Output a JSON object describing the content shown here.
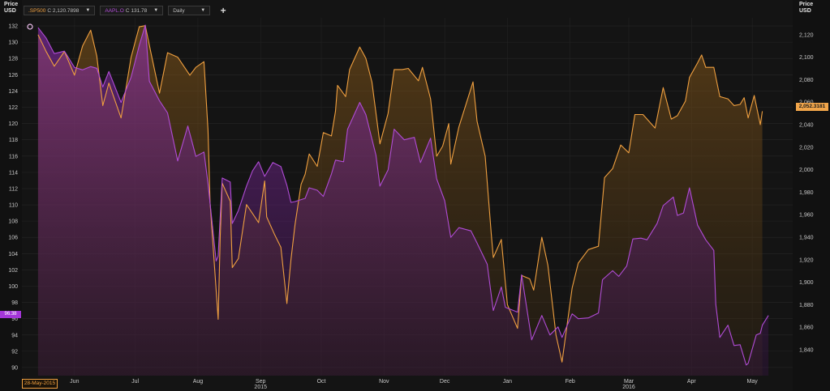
{
  "toolbar": {
    "symbol1": {
      "name": ".SP500",
      "close_label": "C",
      "close_value": "2,120.7898",
      "color": "#f0a040"
    },
    "symbol2": {
      "name": "AAPL.O",
      "close_label": "C",
      "close_value": "131.78",
      "color": "#b04cd6"
    },
    "interval": "Daily",
    "add_label": "+"
  },
  "left_badge": "96.38",
  "right_badge": "2,052.3181",
  "date_badge": "28-May-2015",
  "chart_data": {
    "type": "area",
    "title": "",
    "left_axis": {
      "label_line1": "Price",
      "label_line2": "USD",
      "ylim": [
        89,
        133
      ],
      "ticks": [
        "90",
        "92",
        "94",
        "96",
        "98",
        "100",
        "102",
        "104",
        "106",
        "108",
        "110",
        "112",
        "114",
        "116",
        "118",
        "120",
        "122",
        "124",
        "126",
        "128",
        "130",
        "132"
      ]
    },
    "right_axis": {
      "label_line1": "Price",
      "label_line2": "USD",
      "ylim": [
        1817,
        2135
      ],
      "ticks": [
        "1,840",
        "1,860",
        "1,880",
        "1,900",
        "1,920",
        "1,940",
        "1,960",
        "1,980",
        "2,000",
        "2,020",
        "2,040",
        "2,060",
        "2,080",
        "2,100",
        "2,120"
      ]
    },
    "x_months": [
      "Jun",
      "Jul",
      "Aug",
      "Sep",
      "Oct",
      "Nov",
      "Dec",
      "Jan",
      "Feb",
      "Mar",
      "Apr",
      "May"
    ],
    "x_years": [
      "2015",
      "2016"
    ],
    "grid": true,
    "series": [
      {
        "name": ".SP500",
        "axis": "right",
        "color": "#f0a040",
        "points": [
          [
            "2015-05-28",
            2120
          ],
          [
            "2015-06-01",
            2105
          ],
          [
            "2015-06-05",
            2092
          ],
          [
            "2015-06-10",
            2105
          ],
          [
            "2015-06-15",
            2084
          ],
          [
            "2015-06-19",
            2110
          ],
          [
            "2015-06-23",
            2124
          ],
          [
            "2015-06-26",
            2101
          ],
          [
            "2015-06-29",
            2057
          ],
          [
            "2015-07-02",
            2077
          ],
          [
            "2015-07-08",
            2046
          ],
          [
            "2015-07-13",
            2100
          ],
          [
            "2015-07-17",
            2127
          ],
          [
            "2015-07-20",
            2128
          ],
          [
            "2015-07-23",
            2102
          ],
          [
            "2015-07-27",
            2068
          ],
          [
            "2015-07-31",
            2104
          ],
          [
            "2015-08-05",
            2100
          ],
          [
            "2015-08-11",
            2084
          ],
          [
            "2015-08-14",
            2091
          ],
          [
            "2015-08-18",
            2096
          ],
          [
            "2015-08-20",
            2035
          ],
          [
            "2015-08-21",
            1971
          ],
          [
            "2015-08-24",
            1893
          ],
          [
            "2015-08-25",
            1867
          ],
          [
            "2015-08-26",
            1940
          ],
          [
            "2015-08-27",
            1988
          ],
          [
            "2015-08-31",
            1972
          ],
          [
            "2015-09-01",
            1913
          ],
          [
            "2015-09-04",
            1921
          ],
          [
            "2015-09-08",
            1969
          ],
          [
            "2015-09-11",
            1961
          ],
          [
            "2015-09-14",
            1953
          ],
          [
            "2015-09-17",
            1990
          ],
          [
            "2015-09-18",
            1958
          ],
          [
            "2015-09-22",
            1942
          ],
          [
            "2015-09-25",
            1931
          ],
          [
            "2015-09-28",
            1881
          ],
          [
            "2015-09-30",
            1920
          ],
          [
            "2015-10-02",
            1951
          ],
          [
            "2015-10-05",
            1987
          ],
          [
            "2015-10-07",
            1996
          ],
          [
            "2015-10-09",
            2014
          ],
          [
            "2015-10-13",
            2003
          ],
          [
            "2015-10-16",
            2033
          ],
          [
            "2015-10-20",
            2030
          ],
          [
            "2015-10-22",
            2052
          ],
          [
            "2015-10-23",
            2075
          ],
          [
            "2015-10-27",
            2065
          ],
          [
            "2015-10-29",
            2089
          ],
          [
            "2015-11-03",
            2109
          ],
          [
            "2015-11-06",
            2099
          ],
          [
            "2015-11-09",
            2078
          ],
          [
            "2015-11-13",
            2023
          ],
          [
            "2015-11-17",
            2050
          ],
          [
            "2015-11-20",
            2089
          ],
          [
            "2015-11-24",
            2089
          ],
          [
            "2015-11-27",
            2090
          ],
          [
            "2015-12-02",
            2079
          ],
          [
            "2015-12-04",
            2091
          ],
          [
            "2015-12-08",
            2063
          ],
          [
            "2015-12-11",
            2012
          ],
          [
            "2015-12-14",
            2021
          ],
          [
            "2015-12-17",
            2041
          ],
          [
            "2015-12-18",
            2005
          ],
          [
            "2015-12-22",
            2038
          ],
          [
            "2015-12-29",
            2078
          ],
          [
            "2015-12-31",
            2043
          ],
          [
            "2016-01-04",
            2012
          ],
          [
            "2016-01-07",
            1943
          ],
          [
            "2016-01-08",
            1922
          ],
          [
            "2016-01-12",
            1938
          ],
          [
            "2016-01-15",
            1880
          ],
          [
            "2016-01-20",
            1859
          ],
          [
            "2016-01-22",
            1906
          ],
          [
            "2016-01-26",
            1903
          ],
          [
            "2016-01-28",
            1893
          ],
          [
            "2016-02-01",
            1940
          ],
          [
            "2016-02-04",
            1915
          ],
          [
            "2016-02-08",
            1853
          ],
          [
            "2016-02-11",
            1829
          ],
          [
            "2016-02-16",
            1895
          ],
          [
            "2016-02-19",
            1917
          ],
          [
            "2016-02-24",
            1929
          ],
          [
            "2016-02-29",
            1932
          ],
          [
            "2016-03-03",
            1993
          ],
          [
            "2016-03-07",
            2001
          ],
          [
            "2016-03-11",
            2022
          ],
          [
            "2016-03-15",
            2015
          ],
          [
            "2016-03-18",
            2049
          ],
          [
            "2016-03-22",
            2049
          ],
          [
            "2016-03-28",
            2037
          ],
          [
            "2016-04-01",
            2073
          ],
          [
            "2016-04-05",
            2045
          ],
          [
            "2016-04-08",
            2048
          ],
          [
            "2016-04-12",
            2061
          ],
          [
            "2016-04-14",
            2082
          ],
          [
            "2016-04-18",
            2095
          ],
          [
            "2016-04-20",
            2102
          ],
          [
            "2016-04-22",
            2091
          ],
          [
            "2016-04-26",
            2091
          ],
          [
            "2016-04-29",
            2065
          ],
          [
            "2016-05-03",
            2063
          ],
          [
            "2016-05-06",
            2057
          ],
          [
            "2016-05-09",
            2058
          ],
          [
            "2016-05-11",
            2064
          ],
          [
            "2016-05-13",
            2046
          ],
          [
            "2016-05-16",
            2066
          ],
          [
            "2016-05-19",
            2040
          ],
          [
            "2016-05-20",
            2052
          ]
        ]
      },
      {
        "name": "AAPL.O",
        "axis": "left",
        "color": "#b04cd6",
        "points": [
          [
            "2015-05-28",
            131.8
          ],
          [
            "2015-06-01",
            130.5
          ],
          [
            "2015-06-05",
            128.6
          ],
          [
            "2015-06-10",
            128.9
          ],
          [
            "2015-06-15",
            126.9
          ],
          [
            "2015-06-19",
            126.6
          ],
          [
            "2015-06-23",
            127.0
          ],
          [
            "2015-06-26",
            126.8
          ],
          [
            "2015-06-29",
            124.5
          ],
          [
            "2015-07-02",
            126.4
          ],
          [
            "2015-07-08",
            122.6
          ],
          [
            "2015-07-13",
            125.7
          ],
          [
            "2015-07-17",
            129.6
          ],
          [
            "2015-07-20",
            132.1
          ],
          [
            "2015-07-22",
            125.2
          ],
          [
            "2015-07-27",
            122.8
          ],
          [
            "2015-07-31",
            121.3
          ],
          [
            "2015-08-05",
            115.4
          ],
          [
            "2015-08-10",
            119.7
          ],
          [
            "2015-08-14",
            115.96
          ],
          [
            "2015-08-18",
            116.5
          ],
          [
            "2015-08-20",
            112.6
          ],
          [
            "2015-08-24",
            103.1
          ],
          [
            "2015-08-25",
            103.7
          ],
          [
            "2015-08-27",
            113.3
          ],
          [
            "2015-08-31",
            112.8
          ],
          [
            "2015-09-01",
            107.7
          ],
          [
            "2015-09-04",
            109.3
          ],
          [
            "2015-09-08",
            112.3
          ],
          [
            "2015-09-11",
            114.2
          ],
          [
            "2015-09-14",
            115.3
          ],
          [
            "2015-09-17",
            113.5
          ],
          [
            "2015-09-21",
            115.2
          ],
          [
            "2015-09-25",
            114.7
          ],
          [
            "2015-09-28",
            112.4
          ],
          [
            "2015-09-30",
            110.3
          ],
          [
            "2015-10-02",
            110.4
          ],
          [
            "2015-10-07",
            110.8
          ],
          [
            "2015-10-09",
            112.1
          ],
          [
            "2015-10-13",
            111.8
          ],
          [
            "2015-10-16",
            111.04
          ],
          [
            "2015-10-20",
            113.8
          ],
          [
            "2015-10-22",
            115.5
          ],
          [
            "2015-10-26",
            115.3
          ],
          [
            "2015-10-28",
            119.3
          ],
          [
            "2015-11-03",
            122.6
          ],
          [
            "2015-11-06",
            121.1
          ],
          [
            "2015-11-11",
            116.1
          ],
          [
            "2015-11-13",
            112.3
          ],
          [
            "2015-11-17",
            114.3
          ],
          [
            "2015-11-20",
            119.3
          ],
          [
            "2015-11-25",
            118.0
          ],
          [
            "2015-11-30",
            118.3
          ],
          [
            "2015-12-03",
            115.2
          ],
          [
            "2015-12-08",
            118.2
          ],
          [
            "2015-12-11",
            113.2
          ],
          [
            "2015-12-15",
            110.5
          ],
          [
            "2015-12-18",
            106.0
          ],
          [
            "2015-12-22",
            107.2
          ],
          [
            "2015-12-28",
            106.8
          ],
          [
            "2015-12-31",
            105.3
          ],
          [
            "2016-01-05",
            102.7
          ],
          [
            "2016-01-08",
            97.0
          ],
          [
            "2016-01-12",
            99.9
          ],
          [
            "2016-01-14",
            97.4
          ],
          [
            "2016-01-20",
            96.8
          ],
          [
            "2016-01-22",
            101.4
          ],
          [
            "2016-01-27",
            93.4
          ],
          [
            "2016-02-01",
            96.4
          ],
          [
            "2016-02-05",
            94.0
          ],
          [
            "2016-02-09",
            94.99
          ],
          [
            "2016-02-11",
            93.7
          ],
          [
            "2016-02-16",
            96.6
          ],
          [
            "2016-02-19",
            96.0
          ],
          [
            "2016-02-24",
            96.1
          ],
          [
            "2016-02-29",
            96.7
          ],
          [
            "2016-03-02",
            100.8
          ],
          [
            "2016-03-07",
            101.9
          ],
          [
            "2016-03-10",
            101.2
          ],
          [
            "2016-03-14",
            102.5
          ],
          [
            "2016-03-17",
            105.8
          ],
          [
            "2016-03-21",
            105.9
          ],
          [
            "2016-03-24",
            105.7
          ],
          [
            "2016-03-29",
            107.7
          ],
          [
            "2016-04-01",
            109.9
          ],
          [
            "2016-04-06",
            110.96
          ],
          [
            "2016-04-08",
            108.7
          ],
          [
            "2016-04-11",
            109.0
          ],
          [
            "2016-04-14",
            112.1
          ],
          [
            "2016-04-18",
            107.5
          ],
          [
            "2016-04-22",
            105.7
          ],
          [
            "2016-04-26",
            104.4
          ],
          [
            "2016-04-27",
            97.8
          ],
          [
            "2016-04-29",
            93.7
          ],
          [
            "2016-05-03",
            95.2
          ],
          [
            "2016-05-06",
            92.7
          ],
          [
            "2016-05-09",
            92.8
          ],
          [
            "2016-05-12",
            90.3
          ],
          [
            "2016-05-13",
            90.5
          ],
          [
            "2016-05-17",
            94.0
          ],
          [
            "2016-05-19",
            94.2
          ],
          [
            "2016-05-20",
            95.2
          ],
          [
            "2016-05-23",
            96.4
          ]
        ]
      }
    ]
  }
}
